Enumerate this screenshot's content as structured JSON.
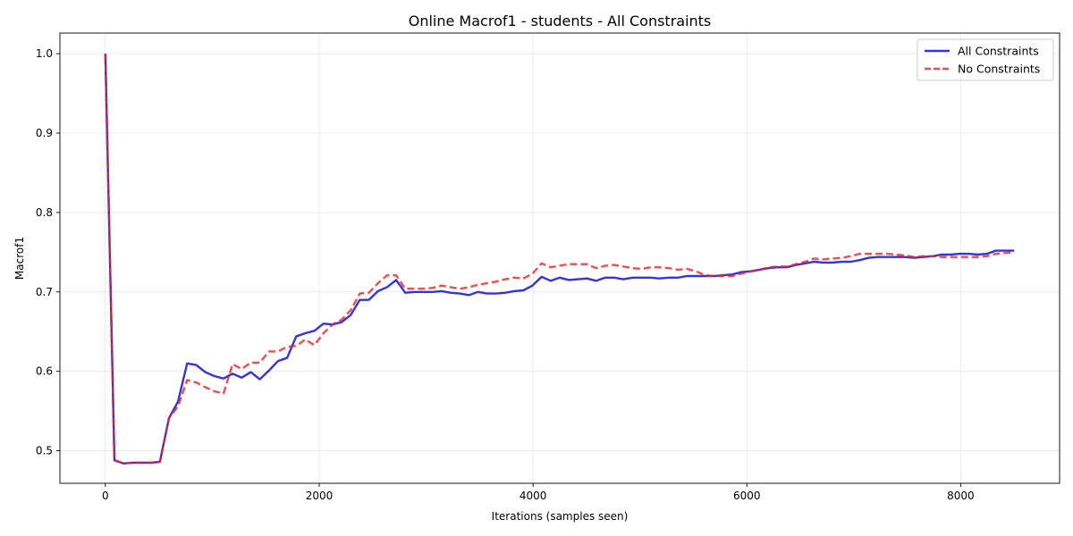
{
  "chart_data": {
    "type": "line",
    "title": "Online Macrof1 - students - All Constraints",
    "xlabel": "Iterations (samples seen)",
    "ylabel": "Macrof1",
    "xlim": [
      -425,
      8925
    ],
    "ylim": [
      0.459,
      1.026
    ],
    "xticks": [
      0,
      2000,
      4000,
      6000,
      8000
    ],
    "xtick_labels": [
      "0",
      "2000",
      "4000",
      "6000",
      "8000"
    ],
    "yticks": [
      0.5,
      0.6,
      0.7,
      0.8,
      0.9,
      1.0
    ],
    "ytick_labels": [
      "0.5",
      "0.6",
      "0.7",
      "0.8",
      "0.9",
      "1.0"
    ],
    "grid": true,
    "legend_position": "top-right",
    "x": [
      0,
      85,
      170,
      255,
      340,
      425,
      510,
      595,
      680,
      765,
      850,
      935,
      1020,
      1105,
      1190,
      1275,
      1360,
      1445,
      1530,
      1615,
      1700,
      1785,
      1870,
      1955,
      2040,
      2125,
      2210,
      2295,
      2380,
      2465,
      2550,
      2635,
      2720,
      2805,
      2890,
      2975,
      3060,
      3145,
      3230,
      3315,
      3400,
      3485,
      3570,
      3655,
      3740,
      3825,
      3910,
      3995,
      4080,
      4165,
      4250,
      4335,
      4420,
      4505,
      4590,
      4675,
      4760,
      4845,
      4930,
      5015,
      5100,
      5185,
      5270,
      5355,
      5440,
      5525,
      5610,
      5695,
      5780,
      5865,
      5950,
      6035,
      6120,
      6205,
      6290,
      6375,
      6460,
      6545,
      6630,
      6715,
      6800,
      6885,
      6970,
      7055,
      7140,
      7225,
      7310,
      7395,
      7480,
      7565,
      7650,
      7735,
      7820,
      7905,
      7990,
      8075,
      8160,
      8245,
      8330,
      8415,
      8500
    ],
    "series": [
      {
        "name": "All Constraints",
        "color": "#0000dd",
        "style": "solid",
        "values": [
          1.0,
          0.488,
          0.484,
          0.485,
          0.485,
          0.485,
          0.486,
          0.541,
          0.562,
          0.61,
          0.608,
          0.599,
          0.594,
          0.591,
          0.597,
          0.592,
          0.599,
          0.59,
          0.601,
          0.613,
          0.617,
          0.644,
          0.648,
          0.651,
          0.66,
          0.659,
          0.662,
          0.671,
          0.69,
          0.69,
          0.701,
          0.706,
          0.715,
          0.699,
          0.7,
          0.7,
          0.7,
          0.701,
          0.699,
          0.698,
          0.696,
          0.7,
          0.698,
          0.698,
          0.699,
          0.701,
          0.702,
          0.708,
          0.719,
          0.714,
          0.718,
          0.715,
          0.716,
          0.717,
          0.714,
          0.718,
          0.718,
          0.716,
          0.718,
          0.718,
          0.718,
          0.717,
          0.718,
          0.718,
          0.72,
          0.72,
          0.72,
          0.72,
          0.721,
          0.722,
          0.725,
          0.726,
          0.728,
          0.73,
          0.731,
          0.731,
          0.734,
          0.736,
          0.738,
          0.737,
          0.737,
          0.738,
          0.738,
          0.74,
          0.743,
          0.744,
          0.744,
          0.744,
          0.744,
          0.743,
          0.744,
          0.745,
          0.747,
          0.747,
          0.748,
          0.748,
          0.747,
          0.748,
          0.752,
          0.752,
          0.752
        ]
      },
      {
        "name": "No Constraints",
        "color": "#ee2020",
        "style": "dashed",
        "values": [
          1.0,
          0.488,
          0.484,
          0.485,
          0.485,
          0.485,
          0.486,
          0.541,
          0.556,
          0.589,
          0.586,
          0.58,
          0.575,
          0.572,
          0.609,
          0.603,
          0.611,
          0.611,
          0.625,
          0.625,
          0.631,
          0.632,
          0.64,
          0.633,
          0.648,
          0.659,
          0.665,
          0.677,
          0.698,
          0.699,
          0.711,
          0.721,
          0.721,
          0.704,
          0.704,
          0.704,
          0.705,
          0.708,
          0.706,
          0.704,
          0.706,
          0.709,
          0.711,
          0.713,
          0.716,
          0.718,
          0.717,
          0.723,
          0.736,
          0.731,
          0.733,
          0.735,
          0.735,
          0.735,
          0.73,
          0.733,
          0.734,
          0.732,
          0.73,
          0.729,
          0.731,
          0.731,
          0.73,
          0.728,
          0.729,
          0.726,
          0.721,
          0.72,
          0.72,
          0.72,
          0.723,
          0.726,
          0.728,
          0.731,
          0.732,
          0.732,
          0.735,
          0.738,
          0.742,
          0.741,
          0.742,
          0.743,
          0.745,
          0.748,
          0.748,
          0.748,
          0.748,
          0.747,
          0.746,
          0.744,
          0.745,
          0.745,
          0.744,
          0.744,
          0.744,
          0.744,
          0.744,
          0.745,
          0.748,
          0.749,
          0.75
        ]
      }
    ]
  }
}
